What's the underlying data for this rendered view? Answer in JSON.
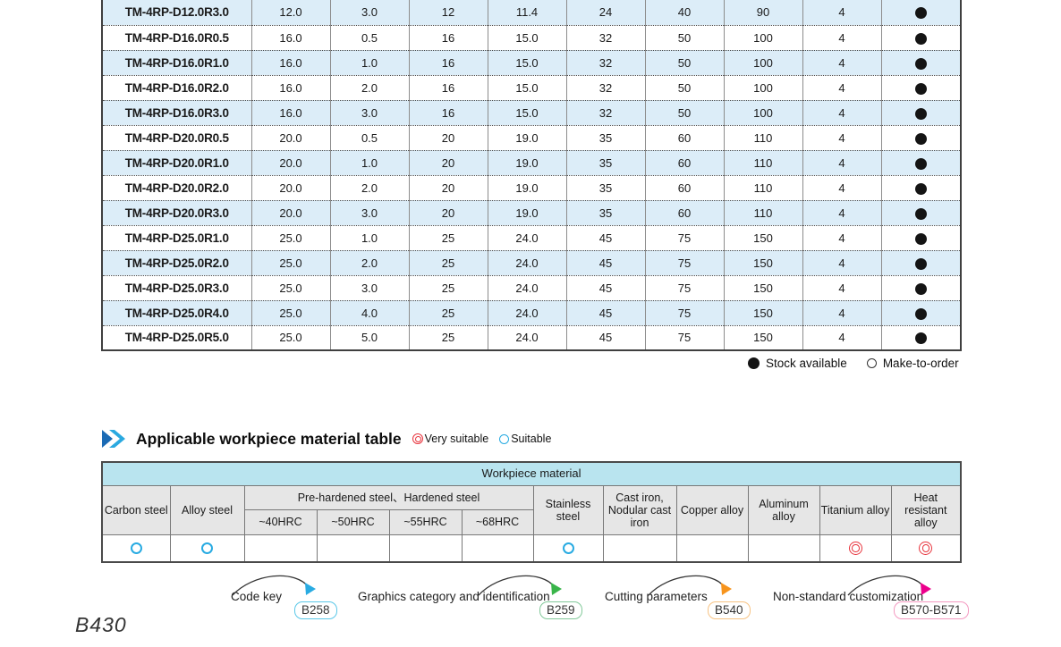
{
  "product_table": {
    "rows": [
      {
        "model": "TM-4RP-D12.0R3.0",
        "values": [
          "12.0",
          "3.0",
          "12",
          "11.4",
          "24",
          "40",
          "90",
          "4"
        ],
        "stock": "stock-available"
      },
      {
        "model": "TM-4RP-D16.0R0.5",
        "values": [
          "16.0",
          "0.5",
          "16",
          "15.0",
          "32",
          "50",
          "100",
          "4"
        ],
        "stock": "stock-available"
      },
      {
        "model": "TM-4RP-D16.0R1.0",
        "values": [
          "16.0",
          "1.0",
          "16",
          "15.0",
          "32",
          "50",
          "100",
          "4"
        ],
        "stock": "stock-available"
      },
      {
        "model": "TM-4RP-D16.0R2.0",
        "values": [
          "16.0",
          "2.0",
          "16",
          "15.0",
          "32",
          "50",
          "100",
          "4"
        ],
        "stock": "stock-available"
      },
      {
        "model": "TM-4RP-D16.0R3.0",
        "values": [
          "16.0",
          "3.0",
          "16",
          "15.0",
          "32",
          "50",
          "100",
          "4"
        ],
        "stock": "stock-available"
      },
      {
        "model": "TM-4RP-D20.0R0.5",
        "values": [
          "20.0",
          "0.5",
          "20",
          "19.0",
          "35",
          "60",
          "110",
          "4"
        ],
        "stock": "stock-available"
      },
      {
        "model": "TM-4RP-D20.0R1.0",
        "values": [
          "20.0",
          "1.0",
          "20",
          "19.0",
          "35",
          "60",
          "110",
          "4"
        ],
        "stock": "stock-available"
      },
      {
        "model": "TM-4RP-D20.0R2.0",
        "values": [
          "20.0",
          "2.0",
          "20",
          "19.0",
          "35",
          "60",
          "110",
          "4"
        ],
        "stock": "stock-available"
      },
      {
        "model": "TM-4RP-D20.0R3.0",
        "values": [
          "20.0",
          "3.0",
          "20",
          "19.0",
          "35",
          "60",
          "110",
          "4"
        ],
        "stock": "stock-available"
      },
      {
        "model": "TM-4RP-D25.0R1.0",
        "values": [
          "25.0",
          "1.0",
          "25",
          "24.0",
          "45",
          "75",
          "150",
          "4"
        ],
        "stock": "stock-available"
      },
      {
        "model": "TM-4RP-D25.0R2.0",
        "values": [
          "25.0",
          "2.0",
          "25",
          "24.0",
          "45",
          "75",
          "150",
          "4"
        ],
        "stock": "stock-available"
      },
      {
        "model": "TM-4RP-D25.0R3.0",
        "values": [
          "25.0",
          "3.0",
          "25",
          "24.0",
          "45",
          "75",
          "150",
          "4"
        ],
        "stock": "stock-available"
      },
      {
        "model": "TM-4RP-D25.0R4.0",
        "values": [
          "25.0",
          "4.0",
          "25",
          "24.0",
          "45",
          "75",
          "150",
          "4"
        ],
        "stock": "stock-available"
      },
      {
        "model": "TM-4RP-D25.0R5.0",
        "values": [
          "25.0",
          "5.0",
          "25",
          "24.0",
          "45",
          "75",
          "150",
          "4"
        ],
        "stock": "stock-available"
      }
    ]
  },
  "stock_legend": {
    "stock_available": "Stock available",
    "make_to_order": "Make-to-order"
  },
  "material_section": {
    "title": "Applicable workpiece material table",
    "very_suitable_label": "Very suitable",
    "suitable_label": "Suitable"
  },
  "material_table": {
    "group_header": "Workpiece material",
    "hardened_group_label": "Pre-hardened steel、Hardened steel",
    "columns": [
      {
        "label": "Carbon steel",
        "mark": "suitable"
      },
      {
        "label": "Alloy steel",
        "mark": "suitable"
      },
      {
        "label": "~40HRC",
        "mark": ""
      },
      {
        "label": "~50HRC",
        "mark": ""
      },
      {
        "label": "~55HRC",
        "mark": ""
      },
      {
        "label": "~68HRC",
        "mark": ""
      },
      {
        "label": "Stainless steel",
        "mark": "suitable"
      },
      {
        "label": "Cast iron, Nodular cast iron",
        "mark": ""
      },
      {
        "label": "Copper alloy",
        "mark": ""
      },
      {
        "label": "Aluminum alloy",
        "mark": ""
      },
      {
        "label": "Titanium alloy",
        "mark": "very-suitable"
      },
      {
        "label": "Heat resistant alloy",
        "mark": "very-suitable"
      }
    ]
  },
  "footer_links": [
    {
      "label": "Code key",
      "badge": "B258",
      "badge_color": "#5bc8e8",
      "arrow_color": "#29abe2"
    },
    {
      "label": "Graphics category and identification",
      "badge": "B259",
      "badge_color": "#82c99a",
      "arrow_color": "#39b54a"
    },
    {
      "label": "Cutting parameters",
      "badge": "B540",
      "badge_color": "#f7c383",
      "arrow_color": "#f7941d"
    },
    {
      "label": "Non-standard customization",
      "badge": "B570-B571",
      "badge_color": "#f49ac1",
      "arrow_color": "#ec008c"
    }
  ],
  "page": {
    "page_number": "B430"
  },
  "colors": {
    "row_alt": "#dcedf8",
    "header_cyan": "#b9e4ef",
    "header_gray": "#e6e6e6",
    "suitable_blue": "#29abe2",
    "very_suitable_red": "#e8353e"
  }
}
